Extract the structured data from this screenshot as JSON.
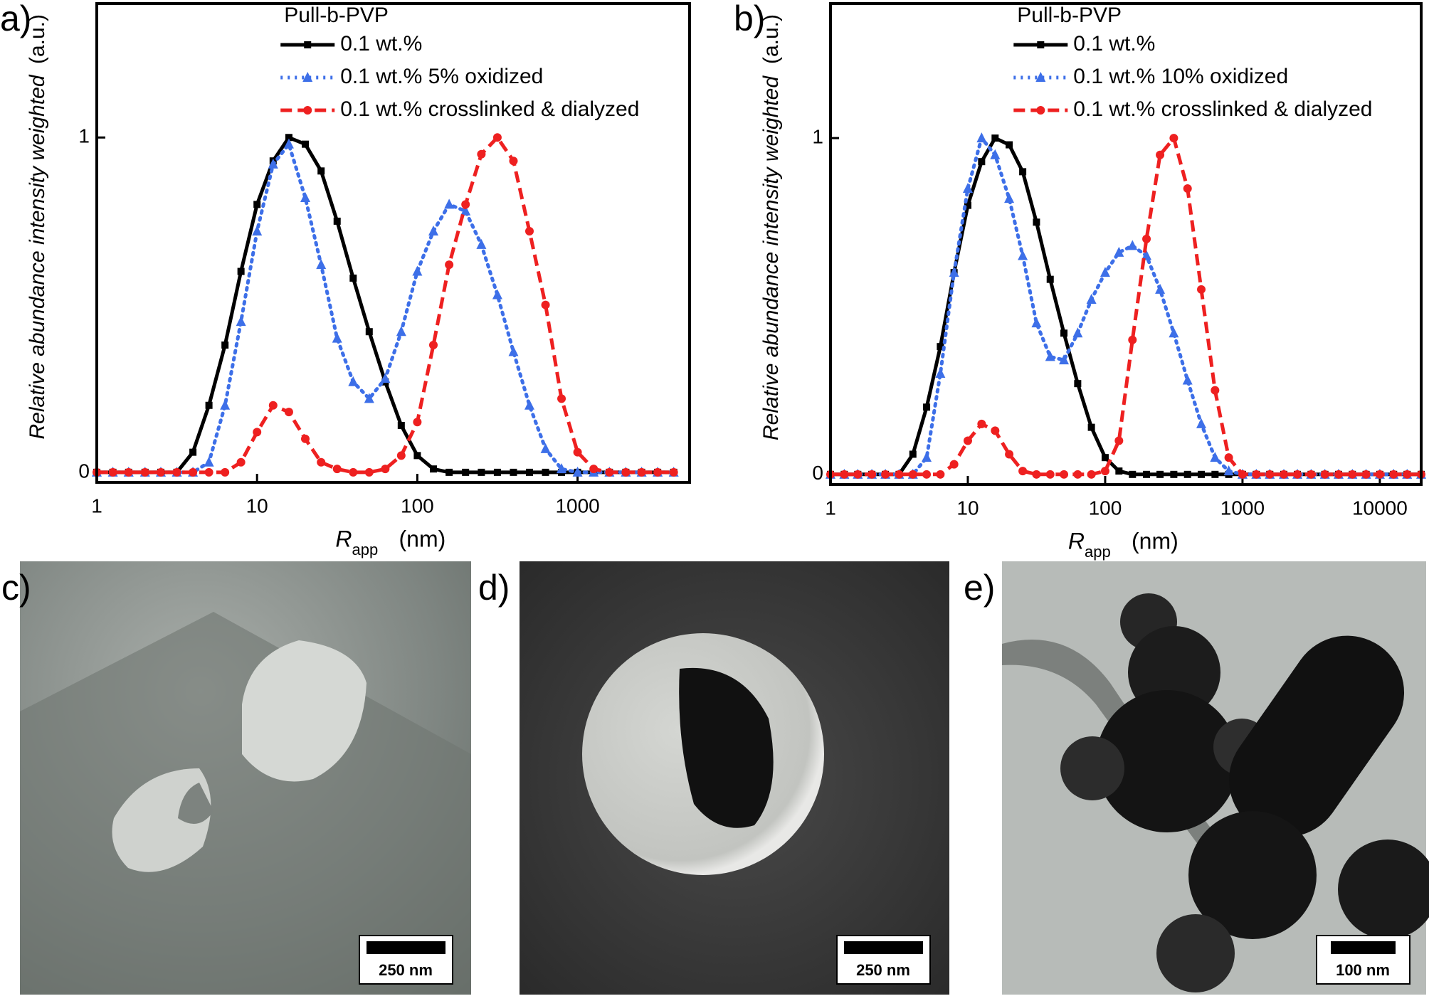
{
  "chart_data": [
    {
      "type": "line",
      "panel_label": "a)",
      "legend_title": "Pull-b-PVP",
      "y_label": "Relative abundance intensity weighted",
      "y_unit": "(a.u.)",
      "x_label": {
        "symbol": "R",
        "subscript": "app",
        "unit": "(nm)"
      },
      "log_x": true,
      "legend": "upper center",
      "xlim": [
        1,
        5000
      ],
      "xticks": [
        1,
        10,
        100,
        1000
      ],
      "ylim": [
        -0.03,
        1.4
      ],
      "yticks": [
        0,
        1
      ],
      "x": [
        1,
        1.26,
        1.58,
        2,
        2.51,
        3.16,
        3.98,
        5.01,
        6.31,
        7.94,
        10,
        12.6,
        15.8,
        20,
        25.1,
        31.6,
        39.8,
        50.1,
        63.1,
        79.4,
        100,
        126,
        158,
        200,
        251,
        316,
        398,
        501,
        631,
        794,
        1000,
        1260,
        1580,
        2000,
        2510,
        3160,
        3980
      ],
      "series": [
        {
          "name": "0.1 wt.%",
          "color": "#000000",
          "line_style": "solid",
          "marker": "square",
          "values": [
            0,
            0,
            0,
            0,
            0,
            0,
            0.06,
            0.2,
            0.38,
            0.6,
            0.8,
            0.93,
            1.0,
            0.98,
            0.9,
            0.75,
            0.58,
            0.42,
            0.27,
            0.14,
            0.05,
            0.01,
            0,
            0,
            0,
            0,
            0,
            0,
            0,
            0,
            0,
            0,
            0,
            0,
            0,
            0,
            0
          ]
        },
        {
          "name": "0.1 wt.%  5% oxidized",
          "color": "#3d6fe8",
          "line_style": "dotted",
          "marker": "triangle",
          "values": [
            0,
            0,
            0,
            0,
            0,
            0,
            0,
            0.03,
            0.2,
            0.45,
            0.72,
            0.92,
            0.98,
            0.82,
            0.62,
            0.4,
            0.27,
            0.22,
            0.28,
            0.42,
            0.6,
            0.72,
            0.8,
            0.78,
            0.68,
            0.53,
            0.36,
            0.2,
            0.07,
            0.01,
            0,
            0,
            0,
            0,
            0,
            0,
            0
          ]
        },
        {
          "name": "0.1 wt.% crosslinked & dialyzed",
          "color": "#ee2020",
          "line_style": "dashed",
          "marker": "circle",
          "values": [
            0,
            0,
            0,
            0,
            0,
            0,
            0,
            0,
            0,
            0.03,
            0.12,
            0.2,
            0.18,
            0.1,
            0.03,
            0.01,
            0,
            0,
            0.01,
            0.05,
            0.15,
            0.38,
            0.62,
            0.8,
            0.95,
            1.0,
            0.93,
            0.72,
            0.5,
            0.22,
            0.06,
            0.01,
            0,
            0,
            0,
            0,
            0
          ]
        }
      ]
    },
    {
      "type": "line",
      "panel_label": "b)",
      "legend_title": "Pull-b-PVP",
      "y_label": "Relative abundance intensity weighted",
      "y_unit": "(a.u.)",
      "x_label": {
        "symbol": "R",
        "subscript": "app",
        "unit": "(nm)"
      },
      "log_x": true,
      "legend": "upper center",
      "xlim": [
        1,
        20000
      ],
      "xticks": [
        1,
        10,
        100,
        1000,
        10000
      ],
      "ylim": [
        -0.03,
        1.4
      ],
      "yticks": [
        0,
        1
      ],
      "x": [
        1,
        1.26,
        1.58,
        2,
        2.51,
        3.16,
        3.98,
        5.01,
        6.31,
        7.94,
        10,
        12.6,
        15.8,
        20,
        25.1,
        31.6,
        39.8,
        50.1,
        63.1,
        79.4,
        100,
        126,
        158,
        200,
        251,
        316,
        398,
        501,
        631,
        794,
        1000,
        1260,
        1580,
        2000,
        2510,
        3160,
        3980,
        5010,
        6310,
        7940,
        10000,
        12600,
        15800,
        20000
      ],
      "series": [
        {
          "name": "0.1 wt.%",
          "color": "#000000",
          "line_style": "solid",
          "marker": "square",
          "values": [
            0,
            0,
            0,
            0,
            0,
            0,
            0.06,
            0.2,
            0.38,
            0.6,
            0.8,
            0.93,
            1.0,
            0.98,
            0.9,
            0.75,
            0.58,
            0.42,
            0.27,
            0.14,
            0.05,
            0.01,
            0,
            0,
            0,
            0,
            0,
            0,
            0,
            0,
            0,
            0,
            0,
            0,
            0,
            0,
            0,
            0,
            0,
            0,
            0,
            0,
            0,
            0
          ]
        },
        {
          "name": "0.1 wt.%  10% oxidized",
          "color": "#3d6fe8",
          "line_style": "dotted",
          "marker": "triangle",
          "values": [
            0,
            0,
            0,
            0,
            0,
            0,
            0,
            0.05,
            0.3,
            0.6,
            0.85,
            1.0,
            0.95,
            0.82,
            0.65,
            0.45,
            0.35,
            0.34,
            0.42,
            0.52,
            0.6,
            0.66,
            0.68,
            0.65,
            0.55,
            0.42,
            0.28,
            0.15,
            0.05,
            0.01,
            0,
            0,
            0,
            0,
            0,
            0,
            0,
            0,
            0,
            0,
            0,
            0,
            0,
            0
          ]
        },
        {
          "name": "0.1 wt.% crosslinked & dialyzed",
          "color": "#ee2020",
          "line_style": "dashed",
          "marker": "circle",
          "values": [
            0,
            0,
            0,
            0,
            0,
            0,
            0,
            0,
            0,
            0.03,
            0.1,
            0.15,
            0.13,
            0.06,
            0.01,
            0,
            0,
            0,
            0,
            0,
            0.01,
            0.1,
            0.4,
            0.7,
            0.95,
            1.0,
            0.85,
            0.55,
            0.25,
            0.05,
            0,
            0,
            0,
            0,
            0,
            0,
            0,
            0,
            0,
            0,
            0,
            0,
            0,
            0
          ]
        }
      ]
    }
  ],
  "images": [
    {
      "panel_label": "c)",
      "scale_bar": "250 nm"
    },
    {
      "panel_label": "d)",
      "scale_bar": "250 nm"
    },
    {
      "panel_label": "e)",
      "scale_bar": "100 nm"
    }
  ]
}
